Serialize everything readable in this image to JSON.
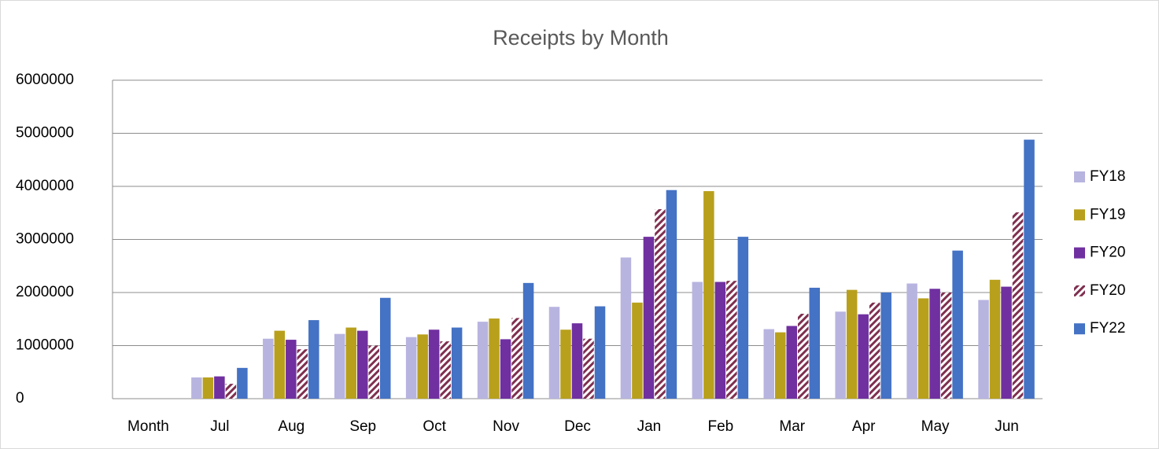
{
  "chart_data": {
    "type": "bar",
    "title": "Receipts by Month",
    "categories": [
      "Month",
      "Jul",
      "Aug",
      "Sep",
      "Oct",
      "Nov",
      "Dec",
      "Jan",
      "Feb",
      "Mar",
      "Apr",
      "May",
      "Jun"
    ],
    "series": [
      {
        "name": "FY18",
        "color": "#b8b4e0",
        "values": [
          null,
          400000,
          1130000,
          1220000,
          1160000,
          1450000,
          1730000,
          2660000,
          2200000,
          1310000,
          1640000,
          2170000,
          1860000
        ]
      },
      {
        "name": "FY19",
        "color": "#b8a01c",
        "values": [
          null,
          400000,
          1280000,
          1340000,
          1210000,
          1510000,
          1300000,
          1810000,
          3910000,
          1250000,
          2050000,
          1890000,
          2240000
        ]
      },
      {
        "name": "FY20",
        "color": "#7030a0",
        "values": [
          null,
          420000,
          1110000,
          1280000,
          1300000,
          1120000,
          1420000,
          3050000,
          2200000,
          1370000,
          1590000,
          2070000,
          2110000
        ]
      },
      {
        "name": "FY20",
        "color": "#7f2f4f",
        "pattern": "diagonal-stripes",
        "values": [
          null,
          280000,
          930000,
          1000000,
          1080000,
          1520000,
          1130000,
          3570000,
          2220000,
          1600000,
          1810000,
          2000000,
          3510000
        ]
      },
      {
        "name": "FY22",
        "color": "#4472c4",
        "values": [
          null,
          580000,
          1480000,
          1900000,
          1340000,
          2180000,
          1740000,
          3930000,
          3050000,
          2090000,
          2000000,
          2790000,
          4880000
        ]
      }
    ],
    "ylim": [
      0,
      6000000
    ],
    "yticks": [
      0,
      1000000,
      2000000,
      3000000,
      4000000,
      5000000,
      6000000
    ],
    "grid": true,
    "legend": "right"
  }
}
